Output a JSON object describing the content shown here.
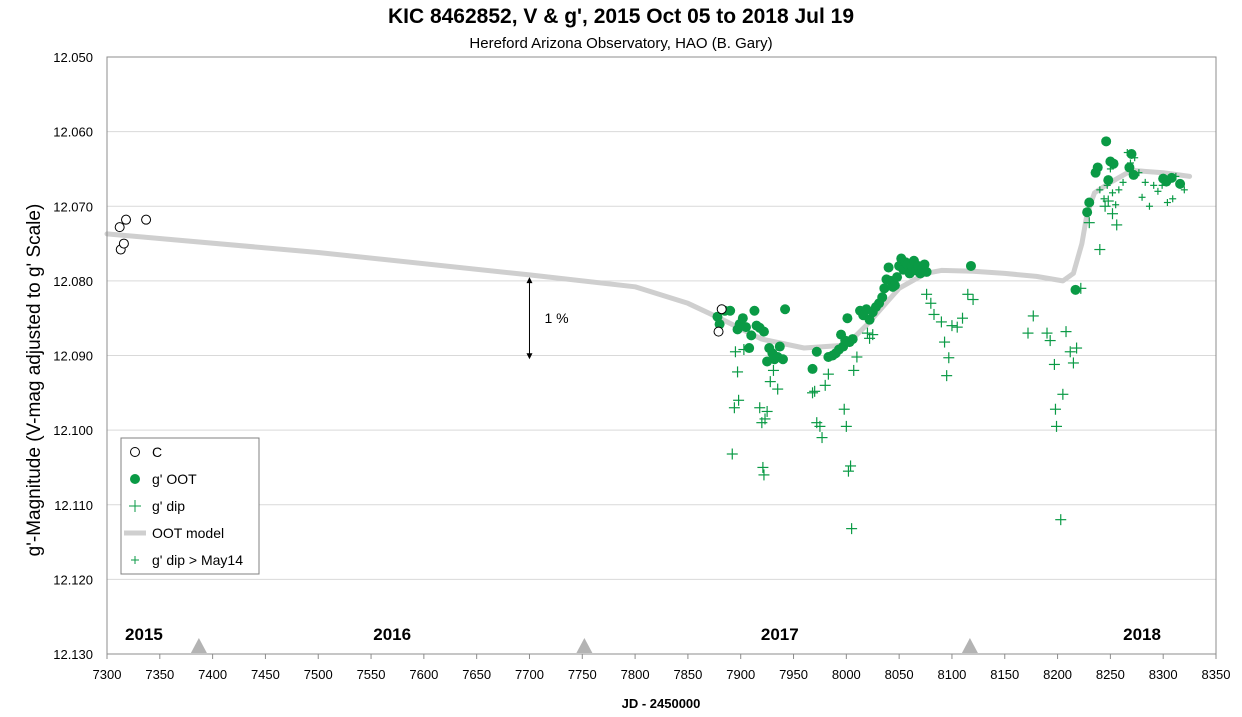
{
  "chart_data": {
    "type": "scatter",
    "title": "KIC 8462852, V & g', 2015 Oct 05 to 2018 Jul 19",
    "subtitle": "Hereford Arizona Observatory, HAO (B. Gary)",
    "xlabel": "JD - 2450000",
    "ylabel": "g'-Magnitude  (V-mag adjusted to g' Scale)",
    "xlim": [
      7300,
      8350
    ],
    "ylim": [
      12.05,
      12.13
    ],
    "y_inverted": true,
    "x_ticks": [
      "7300",
      "7350",
      "7400",
      "7450",
      "7500",
      "7550",
      "7600",
      "7650",
      "7700",
      "7750",
      "7800",
      "7850",
      "7900",
      "7950",
      "8000",
      "8050",
      "8100",
      "8150",
      "8200",
      "8250",
      "8300",
      "8350"
    ],
    "y_ticks": [
      "12.050",
      "12.060",
      "12.070",
      "12.080",
      "12.090",
      "12.100",
      "12.110",
      "12.120",
      "12.130"
    ],
    "grid": true,
    "legend_position": "bottom-left",
    "colors": {
      "ootGreen": "#0a9a45",
      "modelGray": "#cfcfcf",
      "gridGray": "#d9d9d9",
      "markerGray": "#b3b3b3"
    },
    "year_labels": [
      {
        "text": "2015",
        "x": 7335
      },
      {
        "text": "2016",
        "x": 7570
      },
      {
        "text": "2017",
        "x": 7937
      },
      {
        "text": "2018",
        "x": 8280
      }
    ],
    "year_markers": [
      7387,
      7752,
      8117
    ],
    "annotation": {
      "text": "1 %",
      "x": 7700,
      "y_top": 12.0795,
      "y_bottom": 12.0905
    },
    "series": [
      {
        "name": "C",
        "marker": "open-circle",
        "points": [
          [
            7312,
            12.0728
          ],
          [
            7313,
            12.0758
          ],
          [
            7316,
            12.075
          ],
          [
            7318,
            12.0718
          ],
          [
            7337,
            12.0718
          ],
          [
            7879,
            12.0868
          ],
          [
            7882,
            12.0838
          ]
        ]
      },
      {
        "name": "g' OOT",
        "marker": "filled-circle",
        "points": [
          [
            7878,
            12.0848
          ],
          [
            7880,
            12.0858
          ],
          [
            7885,
            12.084
          ],
          [
            7890,
            12.084
          ],
          [
            7897,
            12.0865
          ],
          [
            7899,
            12.0858
          ],
          [
            7902,
            12.085
          ],
          [
            7905,
            12.0862
          ],
          [
            7908,
            12.089
          ],
          [
            7910,
            12.0873
          ],
          [
            7913,
            12.084
          ],
          [
            7915,
            12.086
          ],
          [
            7918,
            12.0863
          ],
          [
            7922,
            12.0868
          ],
          [
            7925,
            12.0908
          ],
          [
            7927,
            12.089
          ],
          [
            7930,
            12.0897
          ],
          [
            7932,
            12.0905
          ],
          [
            7935,
            12.0902
          ],
          [
            7937,
            12.0888
          ],
          [
            7940,
            12.0905
          ],
          [
            7942,
            12.0838
          ],
          [
            7968,
            12.0918
          ],
          [
            7972,
            12.0895
          ],
          [
            7983,
            12.0902
          ],
          [
            7987,
            12.09
          ],
          [
            7990,
            12.0897
          ],
          [
            7993,
            12.0892
          ],
          [
            7995,
            12.0872
          ],
          [
            7997,
            12.0888
          ],
          [
            7999,
            12.088
          ],
          [
            8001,
            12.085
          ],
          [
            8003,
            12.0882
          ],
          [
            8006,
            12.0878
          ],
          [
            8013,
            12.084
          ],
          [
            8016,
            12.0846
          ],
          [
            8019,
            12.0838
          ],
          [
            8022,
            12.0852
          ],
          [
            8025,
            12.0842
          ],
          [
            8028,
            12.0835
          ],
          [
            8031,
            12.083
          ],
          [
            8034,
            12.0822
          ],
          [
            8036,
            12.081
          ],
          [
            8038,
            12.0798
          ],
          [
            8040,
            12.0782
          ],
          [
            8042,
            12.08
          ],
          [
            8044,
            12.0808
          ],
          [
            8046,
            12.0806
          ],
          [
            8048,
            12.0795
          ],
          [
            8050,
            12.078
          ],
          [
            8052,
            12.077
          ],
          [
            8054,
            12.0785
          ],
          [
            8056,
            12.0775
          ],
          [
            8058,
            12.0778
          ],
          [
            8060,
            12.079
          ],
          [
            8062,
            12.078
          ],
          [
            8064,
            12.0773
          ],
          [
            8066,
            12.0786
          ],
          [
            8068,
            12.078
          ],
          [
            8070,
            12.079
          ],
          [
            8072,
            12.0785
          ],
          [
            8074,
            12.0778
          ],
          [
            8076,
            12.0788
          ],
          [
            8118,
            12.078
          ],
          [
            8217,
            12.0812
          ],
          [
            8228,
            12.0708
          ],
          [
            8230,
            12.0695
          ],
          [
            8236,
            12.0655
          ],
          [
            8238,
            12.0648
          ],
          [
            8246,
            12.0613
          ],
          [
            8248,
            12.0665
          ],
          [
            8250,
            12.064
          ],
          [
            8253,
            12.0643
          ],
          [
            8268,
            12.0648
          ],
          [
            8270,
            12.063
          ],
          [
            8272,
            12.0658
          ],
          [
            8300,
            12.0663
          ],
          [
            8303,
            12.0667
          ],
          [
            8308,
            12.0662
          ],
          [
            8316,
            12.067
          ]
        ]
      },
      {
        "name": "g' dip",
        "marker": "plus",
        "points": [
          [
            7892,
            12.1032
          ],
          [
            7894,
            12.097
          ],
          [
            7895,
            12.0895
          ],
          [
            7897,
            12.0922
          ],
          [
            7898,
            12.096
          ],
          [
            7903,
            12.0892
          ],
          [
            7918,
            12.097
          ],
          [
            7920,
            12.099
          ],
          [
            7921,
            12.105
          ],
          [
            7922,
            12.106
          ],
          [
            7923,
            12.0985
          ],
          [
            7925,
            12.0975
          ],
          [
            7928,
            12.0935
          ],
          [
            7931,
            12.092
          ],
          [
            7935,
            12.0945
          ],
          [
            7968,
            12.095
          ],
          [
            7970,
            12.0948
          ],
          [
            7972,
            12.099
          ],
          [
            7975,
            12.0995
          ],
          [
            7977,
            12.101
          ],
          [
            7980,
            12.094
          ],
          [
            7983,
            12.0925
          ],
          [
            7998,
            12.0972
          ],
          [
            8000,
            12.0995
          ],
          [
            8002,
            12.1055
          ],
          [
            8004,
            12.1048
          ],
          [
            8005,
            12.1132
          ],
          [
            8007,
            12.092
          ],
          [
            8010,
            12.0902
          ],
          [
            8020,
            12.087
          ],
          [
            8022,
            12.0877
          ],
          [
            8025,
            12.0872
          ],
          [
            8076,
            12.0818
          ],
          [
            8080,
            12.083
          ],
          [
            8083,
            12.0845
          ],
          [
            8090,
            12.0855
          ],
          [
            8093,
            12.0882
          ],
          [
            8095,
            12.0927
          ],
          [
            8097,
            12.0903
          ],
          [
            8100,
            12.086
          ],
          [
            8105,
            12.0862
          ],
          [
            8110,
            12.085
          ],
          [
            8115,
            12.0818
          ],
          [
            8120,
            12.0825
          ],
          [
            8172,
            12.087
          ],
          [
            8177,
            12.0847
          ],
          [
            8190,
            12.087
          ],
          [
            8193,
            12.088
          ],
          [
            8197,
            12.0912
          ],
          [
            8198,
            12.0972
          ],
          [
            8199,
            12.0995
          ],
          [
            8203,
            12.112
          ],
          [
            8205,
            12.0952
          ],
          [
            8208,
            12.0868
          ],
          [
            8212,
            12.0895
          ],
          [
            8215,
            12.091
          ],
          [
            8218,
            12.089
          ],
          [
            8222,
            12.081
          ],
          [
            8230,
            12.0722
          ],
          [
            8240,
            12.0758
          ],
          [
            8245,
            12.07
          ],
          [
            8248,
            12.0693
          ],
          [
            8252,
            12.071
          ],
          [
            8256,
            12.0725
          ]
        ]
      },
      {
        "name": "OOT model",
        "marker": "line",
        "points": [
          [
            7300,
            12.0737
          ],
          [
            7500,
            12.0762
          ],
          [
            7700,
            12.0792
          ],
          [
            7800,
            12.0808
          ],
          [
            7850,
            12.083
          ],
          [
            7880,
            12.085
          ],
          [
            7920,
            12.0878
          ],
          [
            7960,
            12.089
          ],
          [
            8000,
            12.0886
          ],
          [
            8020,
            12.0858
          ],
          [
            8050,
            12.081
          ],
          [
            8075,
            12.079
          ],
          [
            8090,
            12.0786
          ],
          [
            8120,
            12.0787
          ],
          [
            8150,
            12.079
          ],
          [
            8180,
            12.0794
          ],
          [
            8205,
            12.08
          ],
          [
            8215,
            12.079
          ],
          [
            8223,
            12.075
          ],
          [
            8228,
            12.071
          ],
          [
            8235,
            12.0682
          ],
          [
            8250,
            12.0668
          ],
          [
            8270,
            12.0652
          ],
          [
            8300,
            12.0655
          ],
          [
            8325,
            12.066
          ]
        ]
      },
      {
        "name": "g' dip > May14",
        "marker": "small-plus",
        "points": [
          [
            8240,
            12.0678
          ],
          [
            8244,
            12.069
          ],
          [
            8247,
            12.0672
          ],
          [
            8250,
            12.065
          ],
          [
            8252,
            12.0682
          ],
          [
            8255,
            12.0698
          ],
          [
            8258,
            12.0678
          ],
          [
            8262,
            12.0668
          ],
          [
            8266,
            12.0628
          ],
          [
            8269,
            12.0642
          ],
          [
            8273,
            12.0635
          ],
          [
            8277,
            12.0655
          ],
          [
            8280,
            12.0688
          ],
          [
            8283,
            12.0668
          ],
          [
            8287,
            12.07
          ],
          [
            8291,
            12.0672
          ],
          [
            8295,
            12.068
          ],
          [
            8299,
            12.0672
          ],
          [
            8304,
            12.0695
          ],
          [
            8309,
            12.069
          ],
          [
            8312,
            12.066
          ],
          [
            8316,
            12.0672
          ],
          [
            8320,
            12.0678
          ]
        ]
      }
    ]
  }
}
